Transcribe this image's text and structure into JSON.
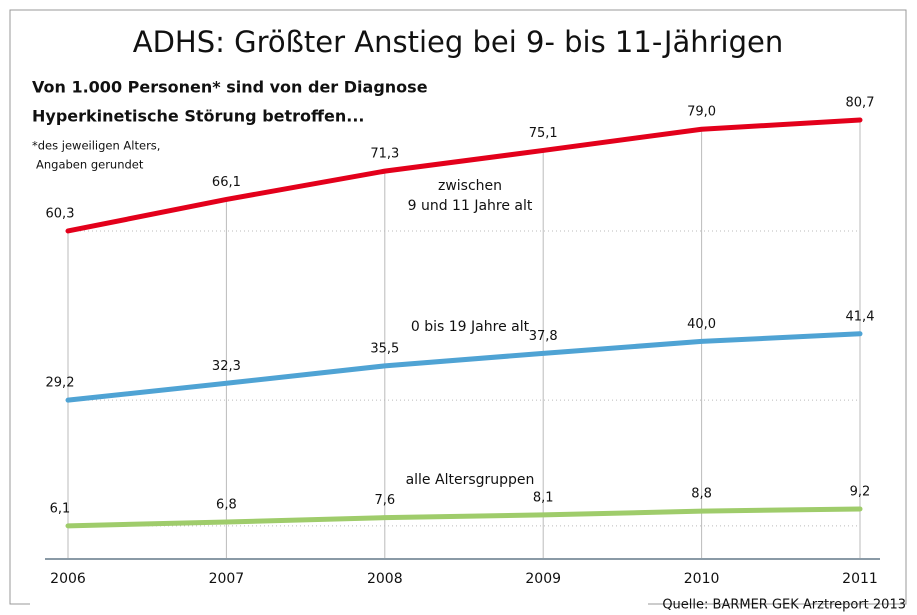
{
  "chart_data": {
    "type": "line",
    "title": "ADHS: Größter Anstieg bei 9- bis 11-Jährigen",
    "subtitle": [
      "Von 1.000 Personen* sind von der Diagnose",
      "Hyperkinetische Störung betroffen..."
    ],
    "note": [
      "*des jeweiligen Alters,",
      "Angaben gerundet"
    ],
    "source": "Quelle: BARMER GEK Arztreport 2013",
    "categories": [
      "2006",
      "2007",
      "2008",
      "2009",
      "2010",
      "2011"
    ],
    "ylim": [
      0,
      100
    ],
    "series": [
      {
        "name": [
          "zwischen",
          "9 und 11 Jahre alt"
        ],
        "color": "#e3001b",
        "values": [
          60.3,
          66.1,
          71.3,
          75.1,
          79.0,
          80.7
        ],
        "value_labels": [
          "60,3",
          "66,1",
          "71,3",
          "75,1",
          "79,0",
          "80,7"
        ]
      },
      {
        "name": "0 bis 19 Jahre alt",
        "color": "#4fa3d4",
        "values": [
          29.2,
          32.3,
          35.5,
          37.8,
          40.0,
          41.4
        ],
        "value_labels": [
          "29,2",
          "32,3",
          "35,5",
          "37,8",
          "40,0",
          "41,4"
        ]
      },
      {
        "name": "alle Altersgruppen",
        "color": "#9fcc6b",
        "values": [
          6.1,
          6.8,
          7.6,
          8.1,
          8.8,
          9.2
        ],
        "value_labels": [
          "6,1",
          "6,8",
          "7,6",
          "8,1",
          "8,8",
          "9,2"
        ]
      }
    ]
  }
}
